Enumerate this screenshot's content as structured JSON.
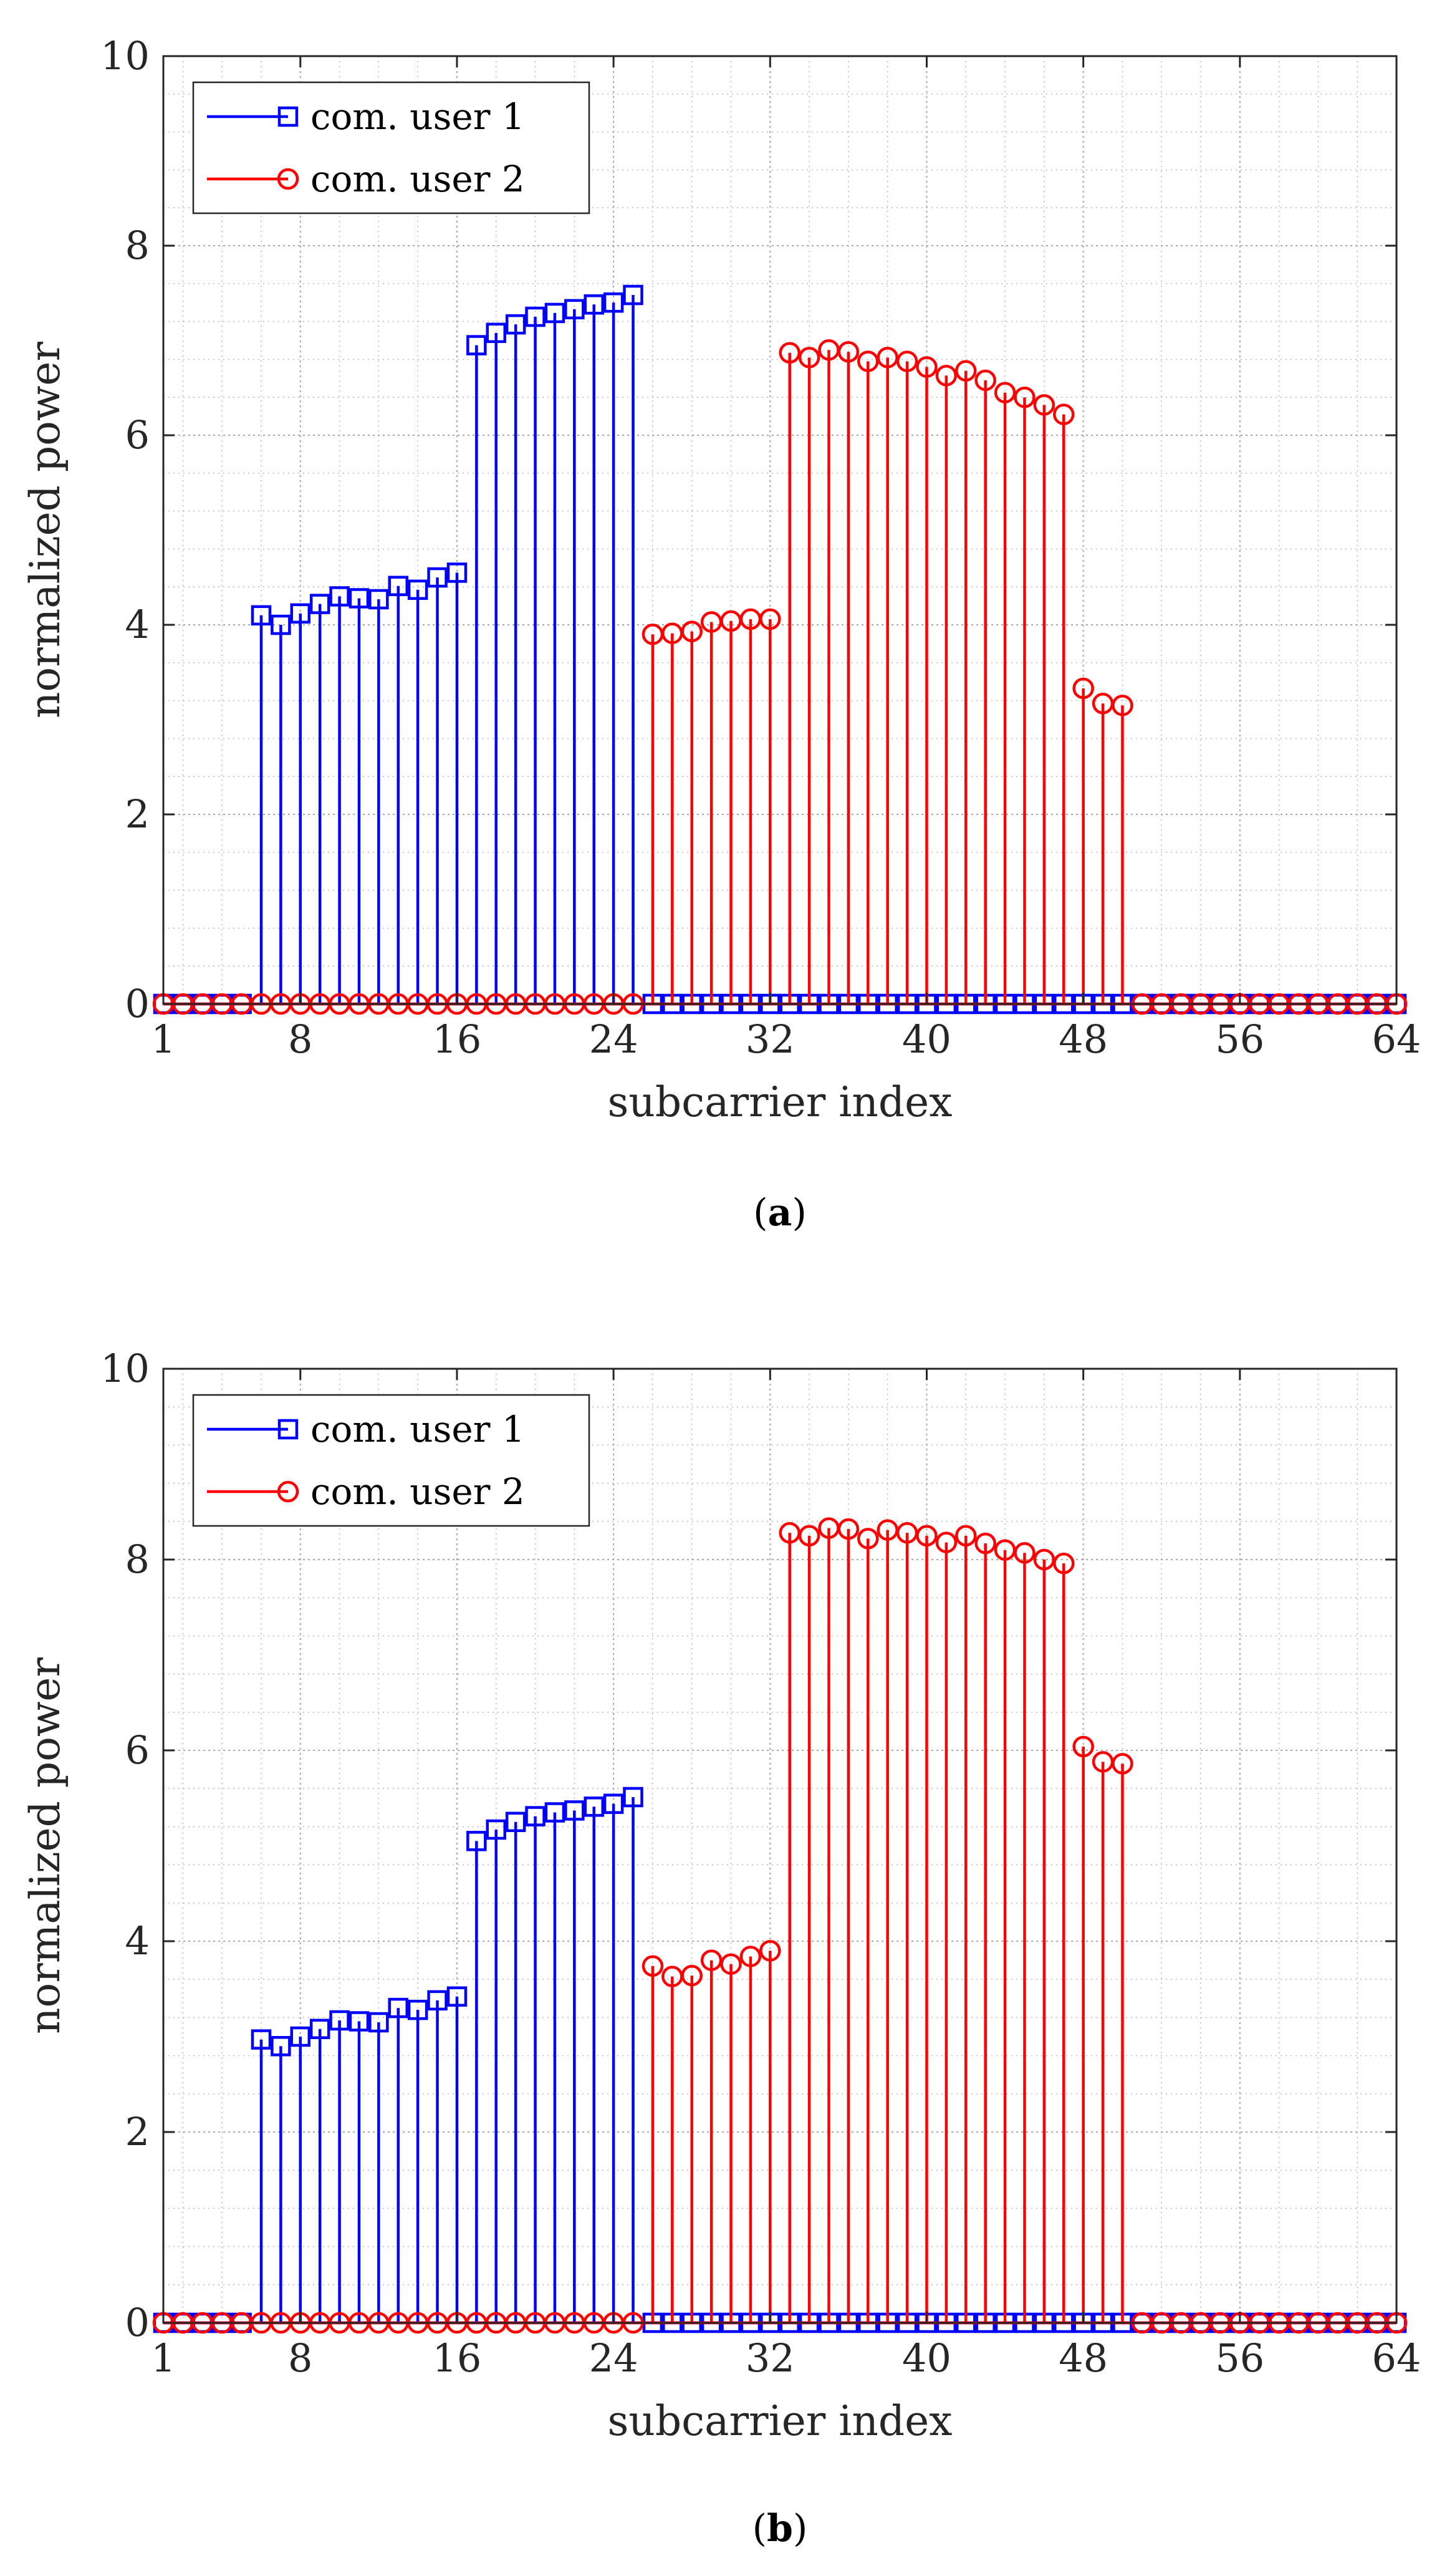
{
  "chart_data": [
    {
      "type": "stem",
      "panel_label": "a",
      "xlabel": "subcarrier index",
      "ylabel": "normalized power",
      "xlim": [
        1,
        64
      ],
      "ylim": [
        0,
        10
      ],
      "xticks": [
        1,
        8,
        16,
        24,
        32,
        40,
        48,
        56,
        64
      ],
      "yticks": [
        0,
        2,
        4,
        6,
        8,
        10
      ],
      "grid": "major and minor, dotted",
      "legend_position": "top-left",
      "x": [
        1,
        2,
        3,
        4,
        5,
        6,
        7,
        8,
        9,
        10,
        11,
        12,
        13,
        14,
        15,
        16,
        17,
        18,
        19,
        20,
        21,
        22,
        23,
        24,
        25,
        26,
        27,
        28,
        29,
        30,
        31,
        32,
        33,
        34,
        35,
        36,
        37,
        38,
        39,
        40,
        41,
        42,
        43,
        44,
        45,
        46,
        47,
        48,
        49,
        50,
        51,
        52,
        53,
        54,
        55,
        56,
        57,
        58,
        59,
        60,
        61,
        62,
        63,
        64
      ],
      "series": [
        {
          "name": "com. user 1",
          "color": "#0000ff",
          "marker": "square",
          "values": [
            0,
            0,
            0,
            0,
            0,
            4.1,
            4.0,
            4.12,
            4.22,
            4.3,
            4.28,
            4.27,
            4.41,
            4.37,
            4.5,
            4.55,
            6.95,
            7.08,
            7.17,
            7.25,
            7.29,
            7.33,
            7.38,
            7.4,
            7.48,
            0,
            0,
            0,
            0,
            0,
            0,
            0,
            0,
            0,
            0,
            0,
            0,
            0,
            0,
            0,
            0,
            0,
            0,
            0,
            0,
            0,
            0,
            0,
            0,
            0,
            0,
            0,
            0,
            0,
            0,
            0,
            0,
            0,
            0,
            0,
            0,
            0,
            0,
            0
          ]
        },
        {
          "name": "com. user 2",
          "color": "#ff0000",
          "marker": "circle",
          "values": [
            0,
            0,
            0,
            0,
            0,
            0,
            0,
            0,
            0,
            0,
            0,
            0,
            0,
            0,
            0,
            0,
            0,
            0,
            0,
            0,
            0,
            0,
            0,
            0,
            0,
            3.9,
            3.91,
            3.93,
            4.03,
            4.04,
            4.06,
            4.06,
            6.87,
            6.82,
            6.9,
            6.88,
            6.78,
            6.82,
            6.78,
            6.72,
            6.63,
            6.68,
            6.58,
            6.45,
            6.4,
            6.32,
            6.22,
            3.33,
            3.17,
            3.15,
            0,
            0,
            0,
            0,
            0,
            0,
            0,
            0,
            0,
            0,
            0,
            0,
            0,
            0
          ]
        }
      ]
    },
    {
      "type": "stem",
      "panel_label": "b",
      "xlabel": "subcarrier index",
      "ylabel": "normalized power",
      "xlim": [
        1,
        64
      ],
      "ylim": [
        0,
        10
      ],
      "xticks": [
        1,
        8,
        16,
        24,
        32,
        40,
        48,
        56,
        64
      ],
      "yticks": [
        0,
        2,
        4,
        6,
        8,
        10
      ],
      "grid": "major and minor, dotted",
      "legend_position": "top-left",
      "x": [
        1,
        2,
        3,
        4,
        5,
        6,
        7,
        8,
        9,
        10,
        11,
        12,
        13,
        14,
        15,
        16,
        17,
        18,
        19,
        20,
        21,
        22,
        23,
        24,
        25,
        26,
        27,
        28,
        29,
        30,
        31,
        32,
        33,
        34,
        35,
        36,
        37,
        38,
        39,
        40,
        41,
        42,
        43,
        44,
        45,
        46,
        47,
        48,
        49,
        50,
        51,
        52,
        53,
        54,
        55,
        56,
        57,
        58,
        59,
        60,
        61,
        62,
        63,
        64
      ],
      "series": [
        {
          "name": "com. user 1",
          "color": "#0000ff",
          "marker": "square",
          "values": [
            0,
            0,
            0,
            0,
            0,
            2.97,
            2.9,
            3.0,
            3.08,
            3.17,
            3.16,
            3.15,
            3.3,
            3.28,
            3.38,
            3.42,
            5.05,
            5.17,
            5.25,
            5.31,
            5.35,
            5.37,
            5.41,
            5.44,
            5.51,
            0,
            0,
            0,
            0,
            0,
            0,
            0,
            0,
            0,
            0,
            0,
            0,
            0,
            0,
            0,
            0,
            0,
            0,
            0,
            0,
            0,
            0,
            0,
            0,
            0,
            0,
            0,
            0,
            0,
            0,
            0,
            0,
            0,
            0,
            0,
            0,
            0,
            0,
            0
          ]
        },
        {
          "name": "com. user 2",
          "color": "#ff0000",
          "marker": "circle",
          "values": [
            0,
            0,
            0,
            0,
            0,
            0,
            0,
            0,
            0,
            0,
            0,
            0,
            0,
            0,
            0,
            0,
            0,
            0,
            0,
            0,
            0,
            0,
            0,
            0,
            0,
            3.74,
            3.63,
            3.64,
            3.8,
            3.76,
            3.84,
            3.9,
            8.28,
            8.25,
            8.33,
            8.32,
            8.22,
            8.31,
            8.28,
            8.25,
            8.18,
            8.25,
            8.17,
            8.1,
            8.07,
            8.0,
            7.96,
            6.04,
            5.88,
            5.86,
            0,
            0,
            0,
            0,
            0,
            0,
            0,
            0,
            0,
            0,
            0,
            0,
            0,
            0
          ]
        }
      ]
    }
  ]
}
